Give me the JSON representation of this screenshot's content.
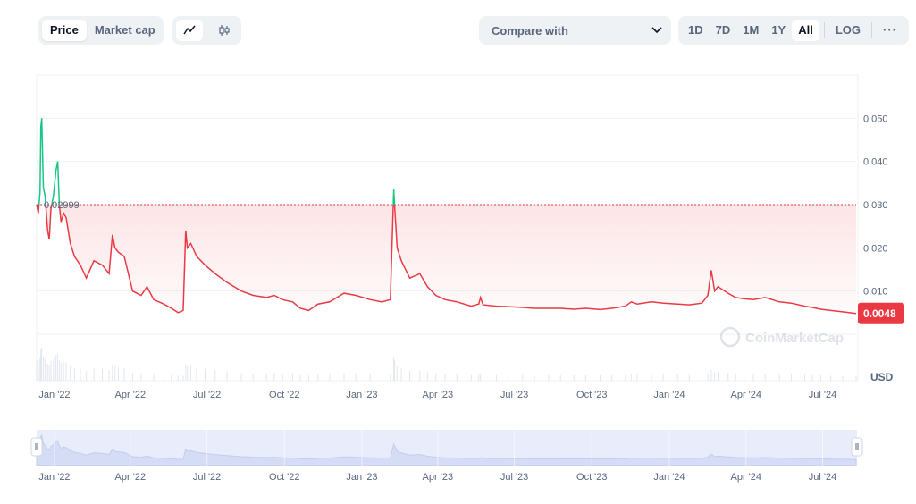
{
  "toolbar": {
    "view_tabs": [
      "Price",
      "Market cap"
    ],
    "active_view": "Price",
    "chart_modes": [
      "line-chart-icon",
      "candlestick-icon"
    ],
    "compare_label": "Compare with",
    "ranges": [
      "1D",
      "7D",
      "1M",
      "1Y",
      "All"
    ],
    "active_range": "All",
    "log_label": "LOG",
    "more_label": "···"
  },
  "watermark": "CoinMarketCap",
  "colors": {
    "up": "#16c784",
    "down": "#ea3943",
    "accent": "#3861fb"
  },
  "chart_data": {
    "type": "line",
    "currency_label": "USD",
    "y_ticks": [
      "0.050",
      "0.040",
      "0.030",
      "0.020",
      "0.010"
    ],
    "ylim": [
      0,
      0.06
    ],
    "x_labels": [
      "Jan '22",
      "Apr '22",
      "Jul '22",
      "Oct '22",
      "Jan '23",
      "Apr '23",
      "Jul '23",
      "Oct '23",
      "Jan '24",
      "Apr '24",
      "Jul '24"
    ],
    "reference_value": 0.02999,
    "reference_label": "0.02999",
    "current_value": 0.0048,
    "current_label": "0.0048",
    "x_range": [
      "2022-01-01",
      "2024-08-31"
    ],
    "series": [
      {
        "x": [
          "2022-01-01",
          "2022-01-03",
          "2022-01-05",
          "2022-01-06",
          "2022-01-07",
          "2022-01-09",
          "2022-01-11",
          "2022-01-14",
          "2022-01-16",
          "2022-01-18",
          "2022-01-21",
          "2022-01-24",
          "2022-01-26",
          "2022-01-28",
          "2022-01-30",
          "2022-02-02",
          "2022-02-05",
          "2022-02-10",
          "2022-02-15",
          "2022-02-22",
          "2022-03-01",
          "2022-03-10",
          "2022-03-20",
          "2022-03-28",
          "2022-04-01",
          "2022-04-04",
          "2022-04-08",
          "2022-04-15",
          "2022-04-25",
          "2022-05-05",
          "2022-05-12",
          "2022-05-20",
          "2022-06-01",
          "2022-06-10",
          "2022-06-18",
          "2022-06-24",
          "2022-06-27",
          "2022-06-29",
          "2022-07-03",
          "2022-07-10",
          "2022-07-20",
          "2022-08-01",
          "2022-08-15",
          "2022-09-01",
          "2022-09-15",
          "2022-10-01",
          "2022-10-10",
          "2022-10-20",
          "2022-11-01",
          "2022-11-10",
          "2022-11-20",
          "2022-12-01",
          "2022-12-15",
          "2023-01-01",
          "2023-01-15",
          "2023-02-01",
          "2023-02-15",
          "2023-02-25",
          "2023-03-01",
          "2023-03-02",
          "2023-03-05",
          "2023-03-10",
          "2023-03-20",
          "2023-04-01",
          "2023-04-10",
          "2023-04-20",
          "2023-05-01",
          "2023-05-15",
          "2023-06-01",
          "2023-06-10",
          "2023-06-12",
          "2023-06-15",
          "2023-07-01",
          "2023-07-15",
          "2023-08-01",
          "2023-08-15",
          "2023-09-01",
          "2023-09-15",
          "2023-10-01",
          "2023-10-15",
          "2023-11-01",
          "2023-11-15",
          "2023-12-01",
          "2023-12-08",
          "2023-12-15",
          "2024-01-01",
          "2024-01-15",
          "2024-02-01",
          "2024-02-15",
          "2024-03-01",
          "2024-03-08",
          "2024-03-12",
          "2024-03-16",
          "2024-03-20",
          "2024-04-01",
          "2024-04-10",
          "2024-04-20",
          "2024-05-01",
          "2024-05-15",
          "2024-06-01",
          "2024-06-15",
          "2024-07-01",
          "2024-07-10",
          "2024-07-20",
          "2024-08-01",
          "2024-08-15",
          "2024-08-31"
        ],
        "y": [
          0.03,
          0.028,
          0.033,
          0.048,
          0.05,
          0.034,
          0.032,
          0.024,
          0.022,
          0.029,
          0.032,
          0.038,
          0.04,
          0.03,
          0.026,
          0.028,
          0.027,
          0.021,
          0.018,
          0.016,
          0.013,
          0.017,
          0.016,
          0.014,
          0.023,
          0.02,
          0.019,
          0.018,
          0.01,
          0.009,
          0.011,
          0.008,
          0.007,
          0.006,
          0.005,
          0.0055,
          0.024,
          0.02,
          0.021,
          0.018,
          0.016,
          0.014,
          0.012,
          0.01,
          0.009,
          0.0085,
          0.009,
          0.008,
          0.0075,
          0.006,
          0.0055,
          0.007,
          0.0075,
          0.0095,
          0.009,
          0.008,
          0.0075,
          0.008,
          0.0335,
          0.03,
          0.02,
          0.017,
          0.013,
          0.014,
          0.011,
          0.009,
          0.008,
          0.0075,
          0.0065,
          0.007,
          0.0085,
          0.0068,
          0.0065,
          0.0064,
          0.0062,
          0.006,
          0.006,
          0.006,
          0.0058,
          0.006,
          0.0057,
          0.006,
          0.0065,
          0.0075,
          0.007,
          0.0075,
          0.0072,
          0.007,
          0.0068,
          0.0072,
          0.009,
          0.0148,
          0.01,
          0.011,
          0.0095,
          0.0085,
          0.0082,
          0.008,
          0.0085,
          0.0075,
          0.0072,
          0.0065,
          0.0062,
          0.0058,
          0.0055,
          0.0052,
          0.0048
        ]
      }
    ]
  }
}
